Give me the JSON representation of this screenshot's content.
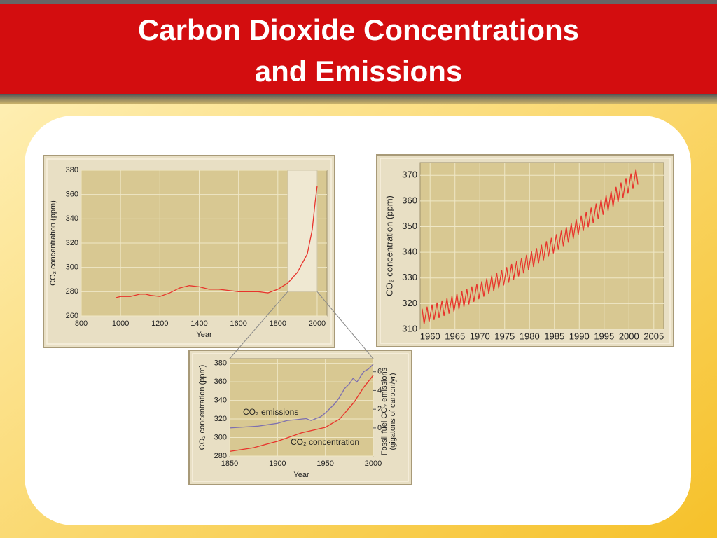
{
  "slide": {
    "title": [
      "Carbon Dioxide Concentrations",
      "and Emissions"
    ]
  },
  "chart_data": [
    {
      "type": "line",
      "xlabel": "Year",
      "ylabel": "CO₂ concentration (ppm)",
      "xlim": [
        800,
        2050
      ],
      "xticks": [
        800,
        1000,
        1200,
        1400,
        1600,
        1800,
        2000
      ],
      "ylim": [
        260,
        380
      ],
      "yticks": [
        260,
        280,
        300,
        320,
        340,
        360,
        380
      ],
      "grid": true,
      "highlight": {
        "x": [
          1850,
          2000
        ],
        "y": [
          280,
          380
        ]
      },
      "series": [
        {
          "name": null,
          "color": "#e8342c",
          "x": [
            975,
            1000,
            1050,
            1100,
            1125,
            1150,
            1200,
            1250,
            1300,
            1350,
            1400,
            1450,
            1500,
            1550,
            1600,
            1650,
            1700,
            1750,
            1800,
            1850,
            1900,
            1950,
            1975,
            1990,
            2000
          ],
          "values": [
            275,
            276,
            276,
            278,
            278,
            277,
            276,
            279,
            283,
            285,
            284,
            282,
            282,
            281,
            280,
            280,
            280,
            279,
            282,
            287,
            296,
            311,
            331,
            354,
            367
          ]
        }
      ]
    },
    {
      "type": "line",
      "ylabel": "CO₂ concentration (ppm)",
      "xlim": [
        1958,
        2007
      ],
      "xticks": [
        1960,
        1965,
        1970,
        1975,
        1980,
        1985,
        1990,
        1995,
        2000,
        2005
      ],
      "ylim": [
        310,
        375
      ],
      "yticks": [
        310,
        320,
        330,
        340,
        350,
        360,
        370
      ],
      "grid": true,
      "series": [
        {
          "name": null,
          "color": "#e8342c",
          "x": [
            1958.4,
            1958.8,
            1959.4,
            1959.8,
            1960.4,
            1960.8,
            1961.4,
            1961.8,
            1962.4,
            1962.8,
            1963.4,
            1963.8,
            1964.4,
            1964.8,
            1965.4,
            1965.8,
            1966.4,
            1966.8,
            1967.4,
            1967.8,
            1968.4,
            1968.8,
            1969.4,
            1969.8,
            1970.4,
            1970.8,
            1971.4,
            1971.8,
            1972.4,
            1972.8,
            1973.4,
            1973.8,
            1974.4,
            1974.8,
            1975.4,
            1975.8,
            1976.4,
            1976.8,
            1977.4,
            1977.8,
            1978.4,
            1978.8,
            1979.4,
            1979.8,
            1980.4,
            1980.8,
            1981.4,
            1981.8,
            1982.4,
            1982.8,
            1983.4,
            1983.8,
            1984.4,
            1984.8,
            1985.4,
            1985.8,
            1986.4,
            1986.8,
            1987.4,
            1987.8,
            1988.4,
            1988.8,
            1989.4,
            1989.8,
            1990.4,
            1990.8,
            1991.4,
            1991.8,
            1992.4,
            1992.8,
            1993.4,
            1993.8,
            1994.4,
            1994.8,
            1995.4,
            1995.8,
            1996.4,
            1996.8,
            1997.4,
            1997.8,
            1998.4,
            1998.8,
            1999.4,
            1999.8,
            2000.4,
            2000.8,
            2001.4,
            2001.8
          ],
          "values": [
            318.0,
            312.0,
            318.8,
            312.8,
            319.6,
            313.6,
            320.4,
            314.4,
            321.2,
            315.2,
            322.1,
            316.1,
            322.9,
            316.9,
            323.8,
            317.8,
            324.8,
            318.8,
            325.7,
            319.7,
            326.7,
            320.7,
            327.7,
            321.7,
            328.7,
            322.7,
            329.8,
            323.8,
            330.9,
            324.9,
            332.0,
            326.0,
            333.1,
            327.1,
            334.2,
            328.2,
            335.4,
            329.4,
            336.6,
            330.6,
            337.8,
            331.8,
            339.0,
            333.0,
            340.3,
            334.3,
            341.6,
            335.6,
            342.9,
            336.9,
            344.3,
            338.3,
            345.6,
            339.6,
            347.0,
            341.0,
            348.4,
            342.4,
            349.8,
            343.8,
            351.3,
            345.3,
            352.8,
            346.8,
            354.3,
            348.3,
            355.8,
            349.8,
            357.4,
            351.4,
            359.0,
            353.0,
            360.6,
            354.6,
            362.2,
            356.2,
            363.8,
            357.8,
            365.5,
            359.5,
            367.2,
            361.2,
            368.9,
            362.9,
            370.7,
            364.7,
            372.4,
            366.4
          ]
        }
      ]
    },
    {
      "type": "line",
      "xlabel": "Year",
      "ylabel": "CO₂ concentration (ppm)",
      "y2label": [
        "Fossil fuel CO₂ emissions",
        "(gigatons of carbon/yr)"
      ],
      "xlim": [
        1850,
        2000
      ],
      "xticks": [
        1850,
        1900,
        1950,
        2000
      ],
      "ylim": [
        280,
        385
      ],
      "yticks": [
        280,
        300,
        320,
        340,
        360,
        380
      ],
      "y2lim": [
        -3,
        7.4
      ],
      "y2ticks": [
        0,
        2,
        4,
        6
      ],
      "grid": true,
      "series": [
        {
          "name": "CO₂ emissions",
          "color": "#7d6fb0",
          "axis": "y2",
          "x": [
            1850,
            1880,
            1900,
            1910,
            1920,
            1930,
            1935,
            1945,
            1950,
            1960,
            1965,
            1970,
            1975,
            1979,
            1983,
            1990,
            1995,
            2000
          ],
          "values": [
            0.0,
            0.2,
            0.5,
            0.8,
            0.9,
            1.0,
            0.8,
            1.2,
            1.6,
            2.6,
            3.3,
            4.2,
            4.7,
            5.3,
            4.9,
            6.0,
            6.3,
            6.8
          ]
        },
        {
          "name": "CO₂ concentration",
          "color": "#e8342c",
          "x": [
            1850,
            1875,
            1900,
            1925,
            1950,
            1965,
            1980,
            1990,
            2000
          ],
          "values": [
            285,
            289,
            296,
            305,
            311,
            320,
            338,
            354,
            367
          ]
        }
      ]
    }
  ]
}
